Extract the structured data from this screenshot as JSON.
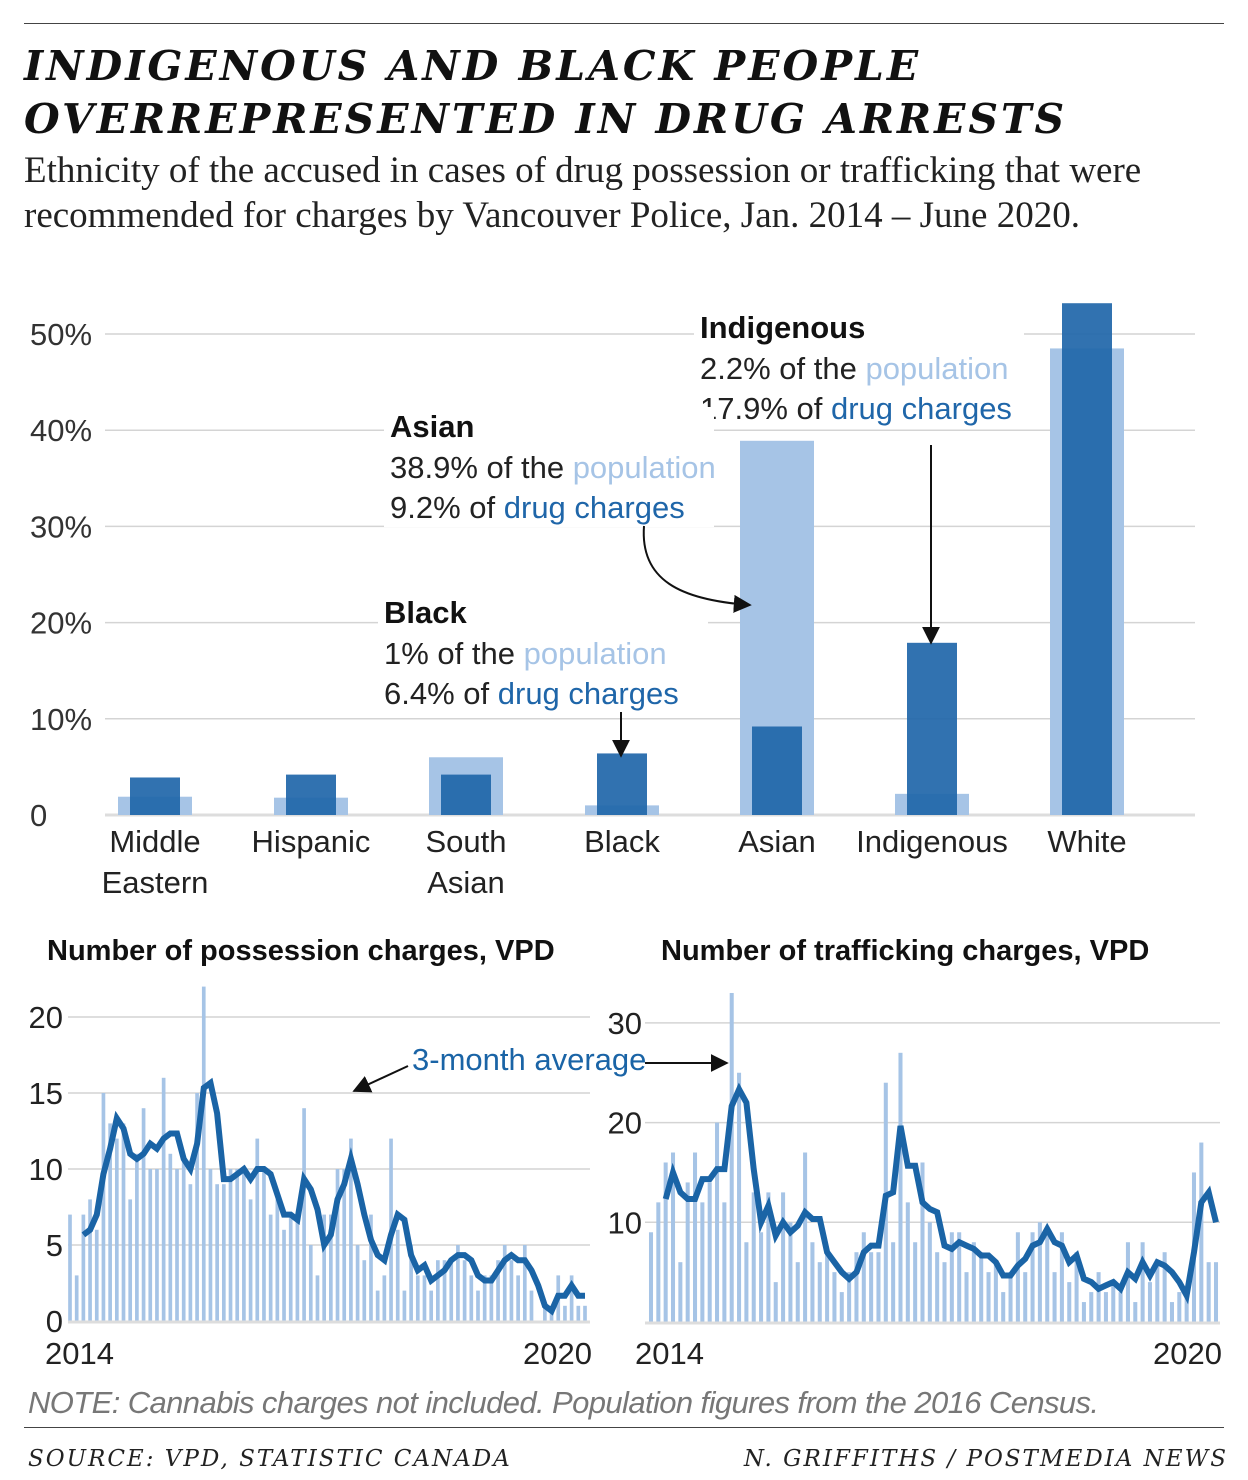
{
  "title_lines": [
    "INDIGENOUS AND BLACK PEOPLE",
    "OVERREPRESENTED IN DRUG ARRESTS"
  ],
  "subtitle": "Ethnicity of the accused in cases of drug possession or trafficking that were recommended for charges by Vancouver Police, Jan. 2014 – June 2020.",
  "colors": {
    "population": "#a6c4e6",
    "drug_charges": "#1f66a9",
    "grid": "#d4d4d4",
    "line": "#1a64a6"
  },
  "annotations": [
    {
      "group": "Indigenous",
      "line1_pre": "2.2% of the ",
      "line1_key": "population",
      "line2_pre": "17.9% of ",
      "line2_key": "drug charges"
    },
    {
      "group": "Asian",
      "line1_pre": "38.9% of the ",
      "line1_key": "population",
      "line2_pre": "9.2% of ",
      "line2_key": "drug charges"
    },
    {
      "group": "Black",
      "line1_pre": "1% of the ",
      "line1_key": "population",
      "line2_pre": "6.4% of ",
      "line2_key": "drug charges"
    }
  ],
  "chart_data": [
    {
      "type": "bar",
      "categories": [
        [
          "Middle",
          "Eastern"
        ],
        [
          "Hispanic"
        ],
        [
          "South",
          "Asian"
        ],
        [
          "Black"
        ],
        [
          "Asian"
        ],
        [
          "Indigenous"
        ],
        [
          "White"
        ]
      ],
      "series": [
        {
          "name": "population",
          "values": [
            1.9,
            1.8,
            6.0,
            1.0,
            38.9,
            2.2,
            48.5
          ]
        },
        {
          "name": "drug charges",
          "values": [
            3.9,
            4.2,
            4.2,
            6.4,
            9.2,
            17.9,
            53.2
          ]
        }
      ],
      "yticks": [
        "0",
        "10%",
        "20%",
        "30%",
        "40%",
        "50%"
      ],
      "ylim": [
        0,
        55
      ],
      "grid": true
    },
    {
      "type": "bar+line",
      "title": "Number of possession charges, VPD",
      "x_start": "2014",
      "x_end": "2020",
      "xtick_labels": [
        "2014",
        "2020"
      ],
      "yticks": [
        "0",
        "5",
        "10",
        "15",
        "20"
      ],
      "ylim": [
        0,
        22
      ],
      "monthly": [
        7,
        3,
        7,
        8,
        6,
        15,
        13,
        12,
        13,
        8,
        11,
        14,
        10,
        10,
        16,
        11,
        10,
        11,
        9,
        15,
        22,
        10,
        9,
        9,
        10,
        10,
        10,
        8,
        12,
        10,
        7,
        8,
        6,
        7,
        7,
        14,
        5,
        3,
        7,
        7,
        10,
        10,
        12,
        5,
        4,
        7,
        2,
        3,
        12,
        6,
        2,
        5,
        3,
        3,
        2,
        4,
        4,
        4,
        5,
        4,
        3,
        2,
        3,
        3,
        4,
        5,
        4,
        3,
        5,
        2,
        0,
        1,
        1,
        3,
        1,
        3,
        1,
        1
      ],
      "line_label": "3-month average"
    },
    {
      "type": "bar+line",
      "title": "Number of trafficking charges, VPD",
      "x_start": "2014",
      "x_end": "2020",
      "xtick_labels": [
        "2014",
        "2020"
      ],
      "yticks": [
        "10",
        "20",
        "30"
      ],
      "ylim": [
        0,
        33
      ],
      "monthly": [
        9,
        12,
        16,
        17,
        6,
        14,
        17,
        12,
        14,
        20,
        12,
        33,
        25,
        8,
        13,
        9,
        13,
        4,
        13,
        10,
        6,
        17,
        8,
        6,
        7,
        5,
        3,
        5,
        7,
        9,
        7,
        7,
        24,
        8,
        27,
        12,
        8,
        16,
        10,
        7,
        6,
        9,
        9,
        5,
        8,
        7,
        5,
        6,
        3,
        5,
        9,
        5,
        9,
        10,
        9,
        5,
        9,
        4,
        7,
        2,
        3,
        5,
        3,
        4,
        3,
        8,
        2,
        8,
        4,
        6,
        7,
        2,
        3,
        3,
        15,
        18,
        6,
        6
      ],
      "line_label": "3-month average"
    }
  ],
  "note": "NOTE: Cannabis charges not included. Population figures from the 2016 Census.",
  "source": "SOURCE: VPD, STATISTIC CANADA",
  "credit": "N. GRIFFITHS / POSTMEDIA NEWS"
}
